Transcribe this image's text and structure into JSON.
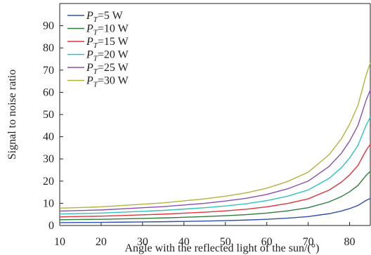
{
  "chart_data": {
    "type": "line",
    "xlabel": "Angle with the reflected light of the sun/(°)",
    "ylabel": "Signal to noise ratio",
    "xlim": [
      10,
      85
    ],
    "ylim": [
      0,
      100
    ],
    "xticks": [
      10,
      20,
      30,
      40,
      50,
      60,
      70,
      80
    ],
    "yticks": [
      0,
      10,
      20,
      30,
      40,
      50,
      60,
      70,
      80,
      90
    ],
    "grid": false,
    "legend_position": "top-left",
    "x": [
      10,
      15,
      20,
      25,
      30,
      35,
      40,
      45,
      50,
      55,
      60,
      65,
      70,
      75,
      78,
      80,
      82,
      84,
      85
    ],
    "series": [
      {
        "name": "PT=5 W",
        "legend_base": "P",
        "legend_sub": "T",
        "legend_rest": "=5 W",
        "color": "#2f4fa8",
        "values": [
          1.3,
          1.35,
          1.4,
          1.5,
          1.6,
          1.7,
          1.85,
          2.0,
          2.2,
          2.45,
          2.8,
          3.3,
          4.0,
          5.3,
          6.5,
          7.6,
          9.0,
          11.3,
          12.2
        ]
      },
      {
        "name": "PT=10 W",
        "legend_base": "P",
        "legend_sub": "T",
        "legend_rest": "=10 W",
        "color": "#2e7d3a",
        "values": [
          2.6,
          2.7,
          2.8,
          3.0,
          3.2,
          3.4,
          3.7,
          4.0,
          4.4,
          4.9,
          5.6,
          6.6,
          8.0,
          10.6,
          13.0,
          15.2,
          18.0,
          22.6,
          24.4
        ]
      },
      {
        "name": "PT=15 W",
        "legend_base": "P",
        "legend_sub": "T",
        "legend_rest": "=15 W",
        "color": "#e0343b",
        "values": [
          3.9,
          4.05,
          4.2,
          4.5,
          4.8,
          5.1,
          5.55,
          6.0,
          6.6,
          7.35,
          8.4,
          9.9,
          12.0,
          15.9,
          19.5,
          22.8,
          27.0,
          33.9,
          36.6
        ]
      },
      {
        "name": "PT=20 W",
        "legend_base": "P",
        "legend_sub": "T",
        "legend_rest": "=20 W",
        "color": "#2fc2c0",
        "values": [
          5.2,
          5.4,
          5.6,
          6.0,
          6.4,
          6.8,
          7.4,
          8.0,
          8.8,
          9.8,
          11.2,
          13.2,
          16.0,
          21.2,
          26.0,
          30.4,
          36.0,
          45.2,
          48.8
        ]
      },
      {
        "name": "PT=25 W",
        "legend_base": "P",
        "legend_sub": "T",
        "legend_rest": "=25 W",
        "color": "#8a4fae",
        "values": [
          6.5,
          6.75,
          7.0,
          7.5,
          8.0,
          8.5,
          9.25,
          10.0,
          11.0,
          12.25,
          14.0,
          16.5,
          20.0,
          26.5,
          32.5,
          38.0,
          45.0,
          56.5,
          61.0
        ]
      },
      {
        "name": "PT=30 W",
        "legend_base": "P",
        "legend_sub": "T",
        "legend_rest": "=30 W",
        "color": "#b5b23c",
        "values": [
          7.8,
          8.1,
          8.4,
          9.0,
          9.6,
          10.2,
          11.1,
          12.0,
          13.2,
          14.7,
          16.8,
          19.8,
          24.0,
          31.8,
          39.0,
          45.6,
          54.0,
          67.8,
          73.2
        ]
      }
    ]
  }
}
